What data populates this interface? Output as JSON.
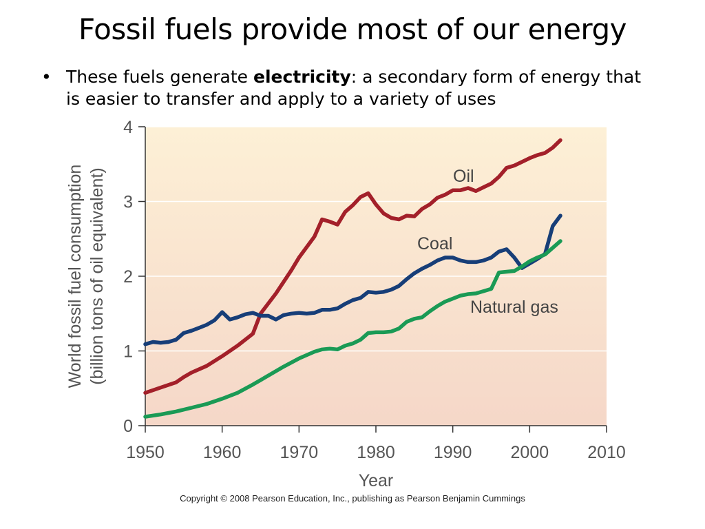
{
  "slide": {
    "title": "Fossil fuels provide most of our energy",
    "bullet": {
      "marker": "•",
      "text_before": "These fuels generate ",
      "bold": "electricity",
      "text_after": ": a secondary form of energy that is easier to transfer and apply to a variety of uses"
    },
    "copyright": "Copyright © 2008 Pearson Education, Inc., publishing as Pearson Benjamin Cummings"
  },
  "colors": {
    "oil": "#a3202a",
    "coal": "#173e78",
    "natural_gas": "#1a9a55",
    "plot_bg_top": "#fdf0d6",
    "plot_bg_bottom": "#f5d7c8"
  },
  "chart_data": {
    "type": "line",
    "title": "",
    "xlabel": "Year",
    "ylabel": [
      "World fossil fuel consumption",
      "(billion tons of oil equivalent)"
    ],
    "xlim": [
      1950,
      2010
    ],
    "ylim": [
      0,
      4
    ],
    "xticks": [
      1950,
      1960,
      1970,
      1980,
      1990,
      2000,
      2010
    ],
    "yticks": [
      0,
      1,
      2,
      3,
      4
    ],
    "grid": "horizontal",
    "legend": "inline",
    "series": [
      {
        "name": "Oil",
        "color": "#a3202a",
        "x": [
          1950,
          1952,
          1954,
          1955,
          1956,
          1958,
          1960,
          1962,
          1964,
          1965,
          1967,
          1969,
          1970,
          1972,
          1973,
          1974,
          1975,
          1976,
          1977,
          1978,
          1979,
          1980,
          1981,
          1982,
          1983,
          1984,
          1985,
          1986,
          1987,
          1988,
          1989,
          1990,
          1991,
          1992,
          1993,
          1994,
          1995,
          1996,
          1997,
          1998,
          1999,
          2000,
          2001,
          2002,
          2003,
          2004
        ],
        "y": [
          0.44,
          0.51,
          0.58,
          0.65,
          0.71,
          0.8,
          0.93,
          1.07,
          1.23,
          1.5,
          1.77,
          2.08,
          2.25,
          2.53,
          2.76,
          2.73,
          2.69,
          2.86,
          2.95,
          3.06,
          3.11,
          2.96,
          2.84,
          2.78,
          2.76,
          2.81,
          2.8,
          2.9,
          2.96,
          3.05,
          3.09,
          3.15,
          3.15,
          3.18,
          3.14,
          3.19,
          3.24,
          3.33,
          3.45,
          3.48,
          3.53,
          3.58,
          3.62,
          3.65,
          3.72,
          3.82
        ]
      },
      {
        "name": "Coal",
        "color": "#173e78",
        "x": [
          1950,
          1951,
          1952,
          1953,
          1954,
          1955,
          1956,
          1957,
          1958,
          1959,
          1960,
          1961,
          1962,
          1963,
          1964,
          1965,
          1966,
          1967,
          1968,
          1969,
          1970,
          1971,
          1972,
          1973,
          1974,
          1975,
          1976,
          1977,
          1978,
          1979,
          1980,
          1981,
          1982,
          1983,
          1984,
          1985,
          1986,
          1987,
          1988,
          1989,
          1990,
          1991,
          1992,
          1993,
          1994,
          1995,
          1996,
          1997,
          1998,
          1999,
          2000,
          2001,
          2002,
          2003,
          2004
        ],
        "y": [
          1.09,
          1.12,
          1.11,
          1.12,
          1.15,
          1.24,
          1.27,
          1.31,
          1.35,
          1.41,
          1.52,
          1.42,
          1.45,
          1.49,
          1.51,
          1.47,
          1.47,
          1.42,
          1.48,
          1.5,
          1.51,
          1.5,
          1.51,
          1.55,
          1.55,
          1.57,
          1.63,
          1.68,
          1.71,
          1.79,
          1.78,
          1.79,
          1.82,
          1.87,
          1.96,
          2.04,
          2.1,
          2.15,
          2.21,
          2.25,
          2.25,
          2.21,
          2.19,
          2.19,
          2.21,
          2.25,
          2.33,
          2.36,
          2.25,
          2.11,
          2.17,
          2.23,
          2.3,
          2.67,
          2.81
        ]
      },
      {
        "name": "Natural gas",
        "color": "#1a9a55",
        "x": [
          1950,
          1952,
          1954,
          1956,
          1958,
          1960,
          1962,
          1964,
          1966,
          1968,
          1970,
          1972,
          1973,
          1974,
          1975,
          1976,
          1977,
          1978,
          1979,
          1980,
          1981,
          1982,
          1983,
          1984,
          1985,
          1986,
          1987,
          1988,
          1989,
          1990,
          1991,
          1992,
          1993,
          1994,
          1995,
          1996,
          1997,
          1998,
          1999,
          2000,
          2001,
          2002,
          2003,
          2004
        ],
        "y": [
          0.12,
          0.15,
          0.19,
          0.24,
          0.29,
          0.36,
          0.44,
          0.55,
          0.67,
          0.79,
          0.9,
          0.99,
          1.02,
          1.03,
          1.02,
          1.07,
          1.1,
          1.15,
          1.24,
          1.25,
          1.25,
          1.26,
          1.3,
          1.39,
          1.43,
          1.45,
          1.53,
          1.6,
          1.66,
          1.7,
          1.74,
          1.76,
          1.77,
          1.8,
          1.83,
          2.05,
          2.06,
          2.07,
          2.13,
          2.2,
          2.25,
          2.29,
          2.38,
          2.47
        ]
      }
    ]
  }
}
